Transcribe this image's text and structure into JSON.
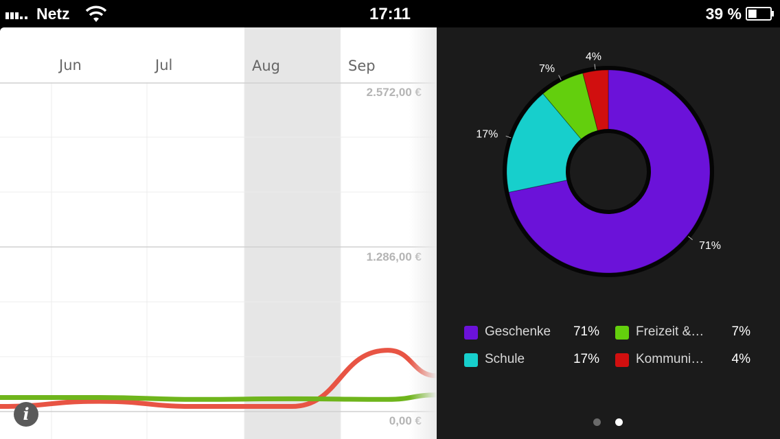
{
  "status_bar": {
    "carrier": "Netz",
    "time": "17:11",
    "battery_percent": "39 %",
    "battery_level": 0.39,
    "icons": [
      "signal-icon",
      "wifi-icon",
      "battery-icon"
    ]
  },
  "line_chart": {
    "months": [
      "Jun",
      "Jul",
      "Aug",
      "Sep"
    ],
    "highlighted_month": "Aug",
    "y_labels": [
      "2.572,00 €",
      "1.286,00 €",
      "0,00 €"
    ],
    "chart_data": {
      "type": "line",
      "x": [
        "",
        "Jun",
        "Jul",
        "Aug",
        "Sep",
        ""
      ],
      "ylim": [
        0,
        2572
      ],
      "series": [
        {
          "color": "#e85444",
          "values": [
            40,
            80,
            40,
            40,
            480,
            280
          ]
        },
        {
          "color": "#6fb51c",
          "values": [
            110,
            110,
            95,
            100,
            95,
            130
          ]
        }
      ]
    },
    "info_label": "i"
  },
  "pie_chart": {
    "chart_data": {
      "type": "pie",
      "slices": [
        {
          "label": "Geschenke",
          "value": 71,
          "color": "#6b12d9",
          "display": "71%"
        },
        {
          "label": "Schule",
          "value": 17,
          "color": "#17cfcc",
          "display": "17%"
        },
        {
          "label": "Freizeit &...",
          "value": 7,
          "color": "#63cf0d",
          "display": "7%"
        },
        {
          "label": "Kommuni...",
          "value": 4,
          "color": "#d10f0f",
          "display": "4%"
        }
      ]
    },
    "legend": [
      {
        "label": "Geschenke",
        "value": "71%",
        "color": "#6b12d9"
      },
      {
        "label": "Freizeit &…",
        "value": "7%",
        "color": "#63cf0d"
      },
      {
        "label": "Schule",
        "value": "17%",
        "color": "#17cfcc"
      },
      {
        "label": "Kommuni…",
        "value": "4%",
        "color": "#d10f0f"
      }
    ],
    "pages": 2,
    "active_page": 2
  }
}
